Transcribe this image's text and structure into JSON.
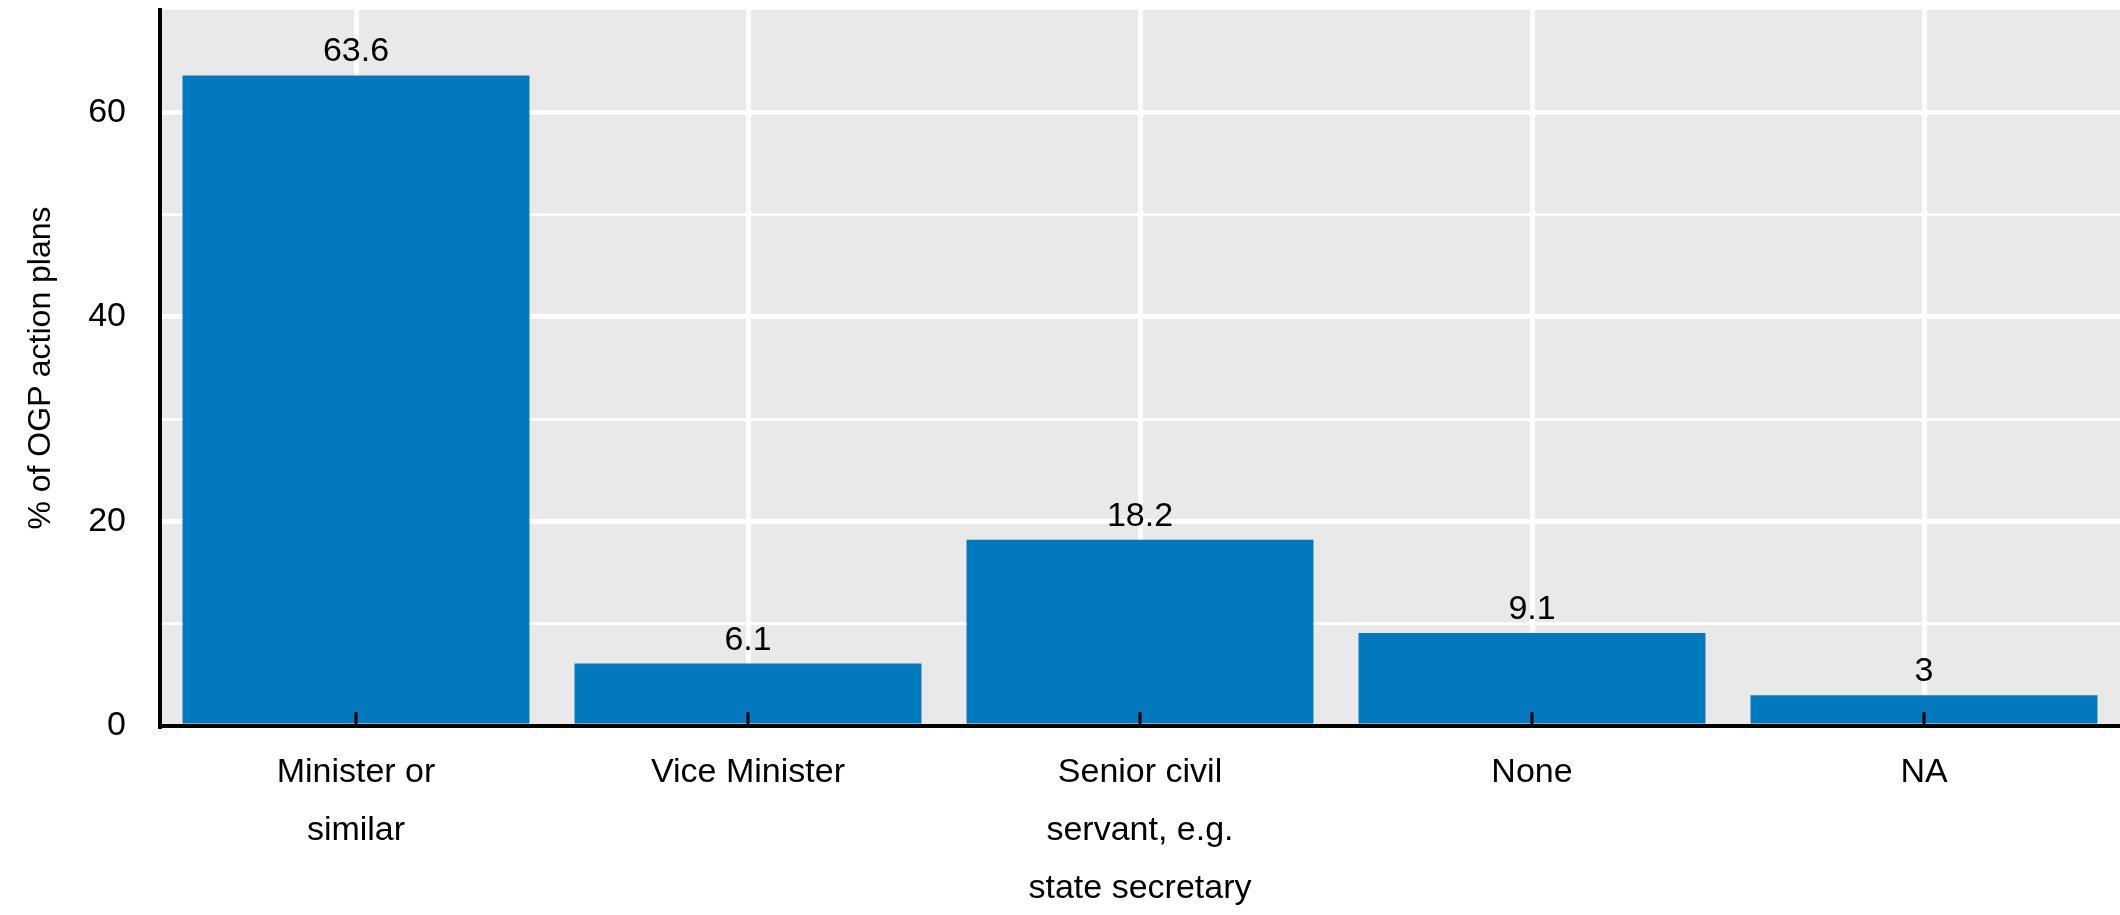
{
  "chart_data": {
    "type": "bar",
    "ylabel": "% of OGP action plans",
    "categories": [
      "Minister or similar",
      "Vice Minister",
      "Senior civil servant, e.g. state secretary",
      "None",
      "NA"
    ],
    "values": [
      63.6,
      6.1,
      18.2,
      9.1,
      3
    ],
    "color": "#0478be",
    "ylim": [
      0,
      70
    ],
    "yticks": [
      0,
      {
        "value": 10,
        "label": null
      },
      20,
      {
        "value": 30,
        "label": null
      },
      40,
      {
        "value": 50,
        "label": null
      },
      60
    ],
    "grid": true,
    "data_labels": true
  }
}
